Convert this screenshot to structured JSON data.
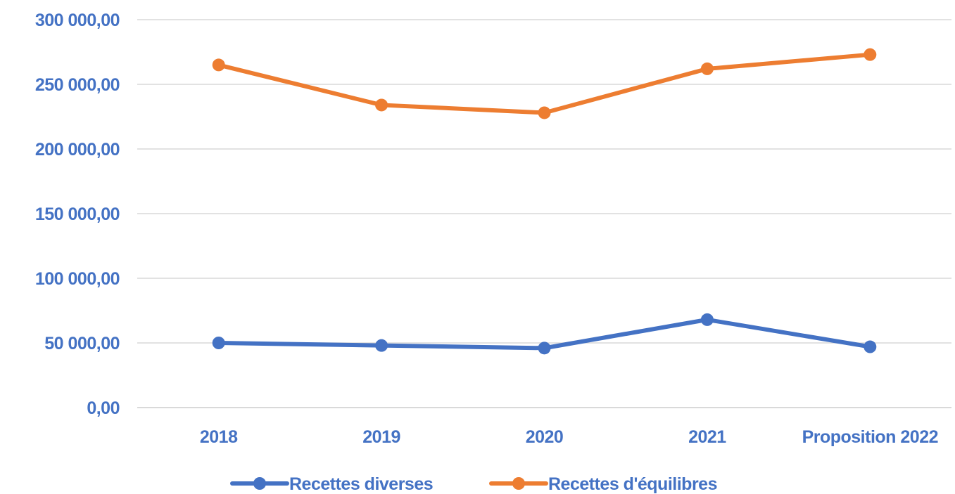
{
  "chart_data": {
    "type": "line",
    "title": "",
    "xlabel": "",
    "ylabel": "",
    "categories": [
      "2018",
      "2019",
      "2020",
      "2021",
      "Proposition 2022"
    ],
    "ylim": [
      0,
      300000
    ],
    "yticks": [
      0,
      50000,
      100000,
      150000,
      200000,
      250000,
      300000
    ],
    "ytick_labels": [
      "0,00",
      "50 000,00",
      "100 000,00",
      "150 000,00",
      "200 000,00",
      "250 000,00",
      "300 000,00"
    ],
    "grid": true,
    "legend": "bottom",
    "series": [
      {
        "name": "Recettes diverses",
        "color": "#4472C4",
        "values": [
          50000,
          48000,
          46000,
          68000,
          47000
        ]
      },
      {
        "name": "Recettes d'équilibres",
        "color": "#ED7D31",
        "values": [
          265000,
          234000,
          228000,
          262000,
          273000
        ]
      }
    ],
    "label_color": "#4472C4",
    "grid_color": "#D9D9D9"
  }
}
